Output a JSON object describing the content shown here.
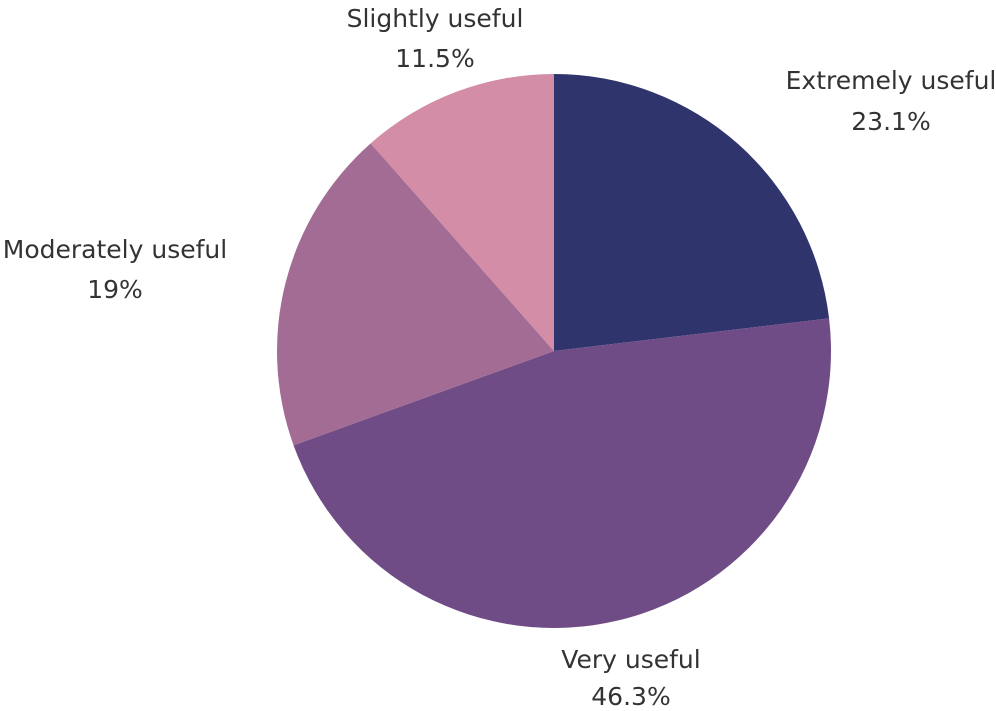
{
  "chart_data": {
    "type": "pie",
    "start_angle_deg": 0,
    "direction": "clockwise",
    "slices": [
      {
        "label": "Extremely useful",
        "value": 23.1,
        "value_label": "23.1%",
        "color": "#2f346d"
      },
      {
        "label": "Very useful",
        "value": 46.3,
        "value_label": "46.3%",
        "color": "#704c86"
      },
      {
        "label": "Moderately useful",
        "value": 19,
        "value_label": "19%",
        "color": "#a36c95"
      },
      {
        "label": "Slightly useful",
        "value": 11.5,
        "value_label": "11.5%",
        "color": "#d38da6"
      }
    ]
  }
}
